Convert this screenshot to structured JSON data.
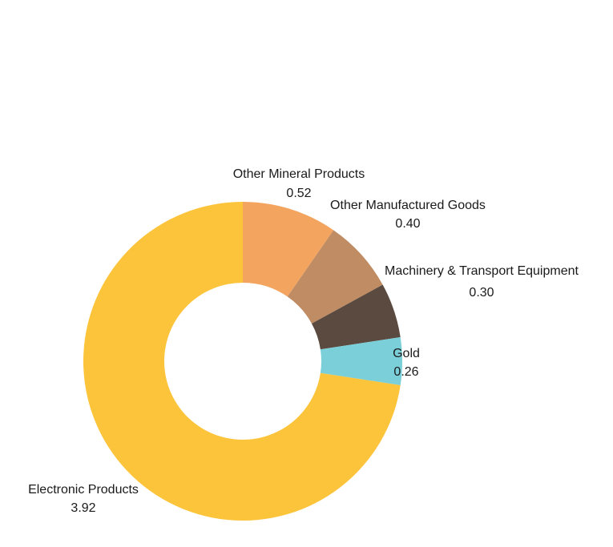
{
  "chart_data": {
    "type": "pie",
    "donut": true,
    "title": "",
    "start_angle_deg": 0,
    "direction": "clockwise",
    "slices": [
      {
        "label": "Other Mineral Products",
        "value": 0.52,
        "display_value": "0.52",
        "color": "#F3A45E"
      },
      {
        "label": "Other Manufactured Goods",
        "value": 0.4,
        "display_value": "0.40",
        "color": "#BF8C64"
      },
      {
        "label": "Machinery & Transport Equipment",
        "value": 0.3,
        "display_value": "0.30",
        "color": "#5A4A3F"
      },
      {
        "label": "Gold",
        "value": 0.26,
        "display_value": "0.26",
        "color": "#7BCFD9"
      },
      {
        "label": "Electronic Products",
        "value": 3.92,
        "display_value": "3.92",
        "color": "#FCC43A"
      }
    ],
    "legend": "none"
  }
}
